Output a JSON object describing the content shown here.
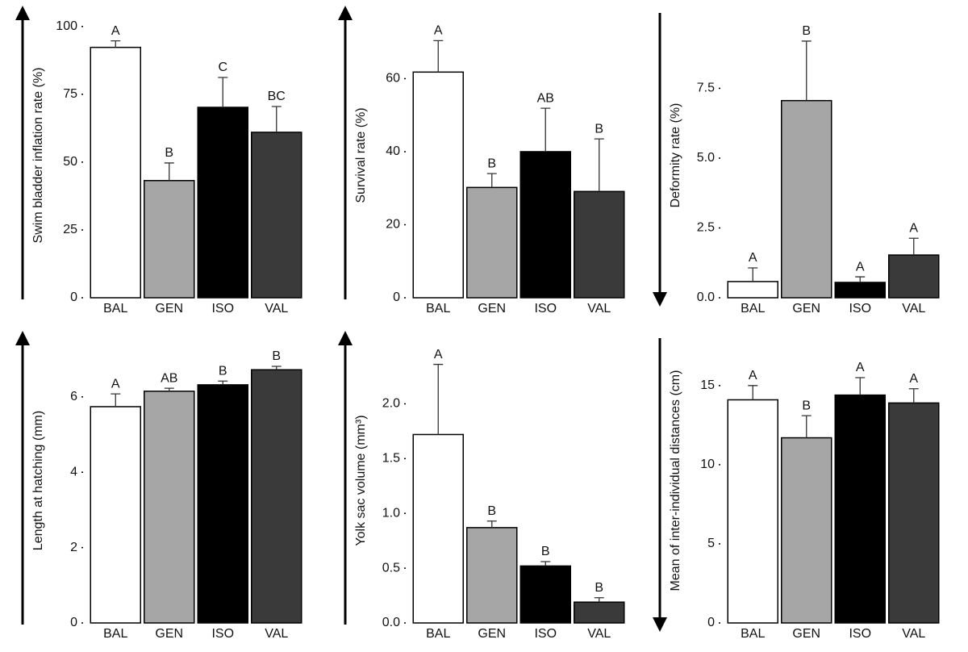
{
  "chart_data": [
    {
      "type": "bar",
      "y_label": "Swim bladder inflation rate (%)",
      "arrow": "up",
      "categories": [
        "BAL",
        "GEN",
        "ISO",
        "VAL"
      ],
      "values": [
        92.3,
        43.2,
        70.2,
        61
      ],
      "errors": [
        2.4,
        6.5,
        11,
        9.5
      ],
      "annotations": [
        "A",
        "B",
        "C",
        "BC"
      ],
      "colors": [
        "#ffffff",
        "#a6a6a6",
        "#000000",
        "#3a3a3a"
      ],
      "ylim": [
        0,
        105
      ],
      "yticks": [
        0,
        25,
        50,
        75,
        100
      ]
    },
    {
      "type": "bar",
      "y_label": "Survival rate (%)",
      "arrow": "up",
      "categories": [
        "BAL",
        "GEN",
        "ISO",
        "VAL"
      ],
      "values": [
        61.8,
        30.2,
        40,
        29.1
      ],
      "errors": [
        8.6,
        3.8,
        11.9,
        14.4
      ],
      "annotations": [
        "A",
        "B",
        "AB",
        "B"
      ],
      "colors": [
        "#ffffff",
        "#a6a6a6",
        "#000000",
        "#3a3a3a"
      ],
      "ylim": [
        0,
        78
      ],
      "yticks": [
        0,
        20,
        40,
        60
      ]
    },
    {
      "type": "bar",
      "y_label": "Deformity rate (%)",
      "arrow": "down",
      "categories": [
        "BAL",
        "GEN",
        "ISO",
        "VAL"
      ],
      "values": [
        0.58,
        7.06,
        0.55,
        1.53
      ],
      "errors": [
        0.49,
        2.13,
        0.2,
        0.6
      ],
      "annotations": [
        "A",
        "B",
        "A",
        "A"
      ],
      "colors": [
        "#ffffff",
        "#a6a6a6",
        "#000000",
        "#3a3a3a"
      ],
      "ylim": [
        0,
        10.2
      ],
      "yticks": [
        {
          "value": 0,
          "label": "0.0"
        },
        {
          "value": 2.5,
          "label": "2.5"
        },
        {
          "value": 5,
          "label": "5.0"
        },
        {
          "value": 7.5,
          "label": "7.5"
        }
      ]
    },
    {
      "type": "bar",
      "y_label": "Length at hatching (mm)",
      "arrow": "up",
      "categories": [
        "BAL",
        "GEN",
        "ISO",
        "VAL"
      ],
      "values": [
        5.74,
        6.15,
        6.32,
        6.72
      ],
      "errors": [
        0.34,
        0.08,
        0.1,
        0.09
      ],
      "annotations": [
        "A",
        "AB",
        "B",
        "B"
      ],
      "colors": [
        "#ffffff",
        "#a6a6a6",
        "#000000",
        "#3a3a3a"
      ],
      "ylim": [
        0,
        7.56
      ],
      "yticks": [
        0,
        2,
        4,
        6
      ]
    },
    {
      "type": "bar",
      "y_label": "Yolk sac volume (mm³)",
      "arrow": "up",
      "categories": [
        "BAL",
        "GEN",
        "ISO",
        "VAL"
      ],
      "values": [
        1.72,
        0.87,
        0.52,
        0.19
      ],
      "errors": [
        0.64,
        0.06,
        0.04,
        0.04
      ],
      "annotations": [
        "A",
        "B",
        "B",
        "B"
      ],
      "colors": [
        "#ffffff",
        "#a6a6a6",
        "#000000",
        "#3a3a3a"
      ],
      "ylim": [
        0,
        2.6
      ],
      "yticks": [
        {
          "value": 0,
          "label": "0.0"
        },
        {
          "value": 0.5,
          "label": "0.5"
        },
        {
          "value": 1,
          "label": "1.0"
        },
        {
          "value": 1.5,
          "label": "1.5"
        },
        {
          "value": 2,
          "label": "2.0"
        }
      ]
    },
    {
      "type": "bar",
      "y_label": "Mean of inter-individual distances (cm)",
      "arrow": "down",
      "categories": [
        "BAL",
        "GEN",
        "ISO",
        "VAL"
      ],
      "values": [
        14.1,
        11.7,
        14.4,
        13.9
      ],
      "errors": [
        0.9,
        1.4,
        1.1,
        0.9
      ],
      "annotations": [
        "A",
        "B",
        "A",
        "A"
      ],
      "colors": [
        "#ffffff",
        "#a6a6a6",
        "#000000",
        "#3a3a3a"
      ],
      "ylim": [
        0,
        18
      ],
      "yticks": [
        0,
        5,
        10,
        15
      ]
    }
  ]
}
